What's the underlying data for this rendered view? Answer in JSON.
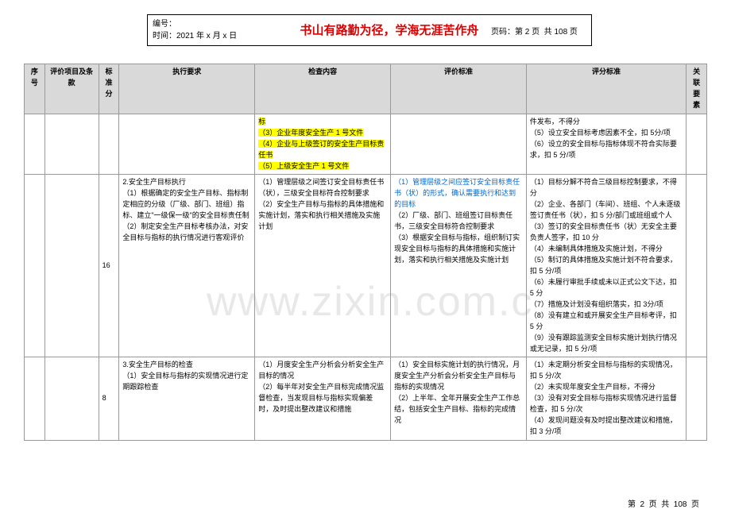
{
  "header": {
    "bianhao": "编号：",
    "shijian": "时间：2021 年 x 月 x 日",
    "motto": "书山有路勤为径，学海无涯苦作舟",
    "yema": "页码：第 2 页  共 108 页"
  },
  "columns": [
    "序号",
    "评价项目及条款",
    "标准分",
    "执行要求",
    "检查内容",
    "评价标准",
    "评分标准",
    "关联要素"
  ],
  "watermark": "www.zixin.com.c",
  "rows": [
    {
      "c0": "",
      "c1": "",
      "c2": "",
      "c3": "",
      "c4_hl": "标\n（3）企业年度安全生产 1 号文件\n（4）企业与上级签订的安全生产目标责任书\n（5）上级安全生产 1 号文件",
      "c5": "",
      "c6": "件发布，不得分\n（5）设立安全目标考虑因素不全，扣 5分/项\n（6）设立的安全目标与指标体现不符合实际要求，扣 5 分/项",
      "c7": ""
    },
    {
      "c0": "",
      "c1": "",
      "c2": "16",
      "c3": "2.安全生产目标执行\n（1）根据确定的安全生产目标、指标制定相应的分级（厂级、部门、班组）指标、建立\"一级保一级\"的安全目标责任制\n（2）制定安全生产目标考核办法，对安全目标与指标的执行情况进行客观评价",
      "c4": "（1）管理层级之间签订安全目标责任书（状），三级安全目标符合控制要求\n（2）安全生产目标与指标的具体措施和实施计划，落实和执行相关措施及实施计划",
      "c5_blue": "（1）管理层级之间应签订安全目标责任书（状）的形式，确认需要执行和达到的目标",
      "c5": "（2）厂级、部门、班组签订目标责任书，三级安全目标符合控制要求\n（3）根据安全目标与指标，组织制订实现安全目标与指标的具体措施和实施计划，落实和执行相关措施及实施计划",
      "c6": "（1）目标分解不符合三级目标控制要求，不得分\n（2）企业、各部门（车间）、班组、个人未逐级签订责任书（状），扣 5 分/部门或班组或个人\n（3）签订的安全目标责任书（状）无安全主要负责人签字，扣 10 分\n（4）未编制具体措施及实施计划，不得分\n（5）制订的具体措施及实施计划不符合要求，扣 5 分/项\n（6）未履行审批手续或未以正式公文下达，扣 5 分\n（7）措施及计划没有组织落实，扣 3分/项\n（8）没有建立和或开展安全生产目标考评，扣 5 分\n（9）没有跟踪监测安全目标实施计划执行情况或无记录，扣 5 分/项",
      "c7": ""
    },
    {
      "c0": "",
      "c1": "",
      "c2": "8",
      "c3": "3.安全生产目标的检查\n（1）安全目标与指标的实现情况进行定期跟踪检查",
      "c4": "（1）月度安全生产分析会分析安全生产目标的情况\n（2）每半年对安全生产目标完成情况监督检查，当发现目标与指标实现偏差时，及时提出整改建议和措施",
      "c5": "（1）安全目标实施计划的执行情况，月度安全生产分析会分析安全生产目标与指标的实现情况\n（2）上半年、全年开展安全生产工作总结，包括安全生产目标、指标的完成情况",
      "c6": "（1）未定期分析安全目标与指标的实现情况，扣 5 分/次\n（2）未实现年度安全生产目标，不得分\n（3）没有对安全目标与指标实现情况进行监督检查，扣 5 分/次\n（4）发现问题没有及时提出整改建议和措施，扣 3 分/项",
      "c7": ""
    }
  ],
  "footer": "第  2  页  共  108  页"
}
